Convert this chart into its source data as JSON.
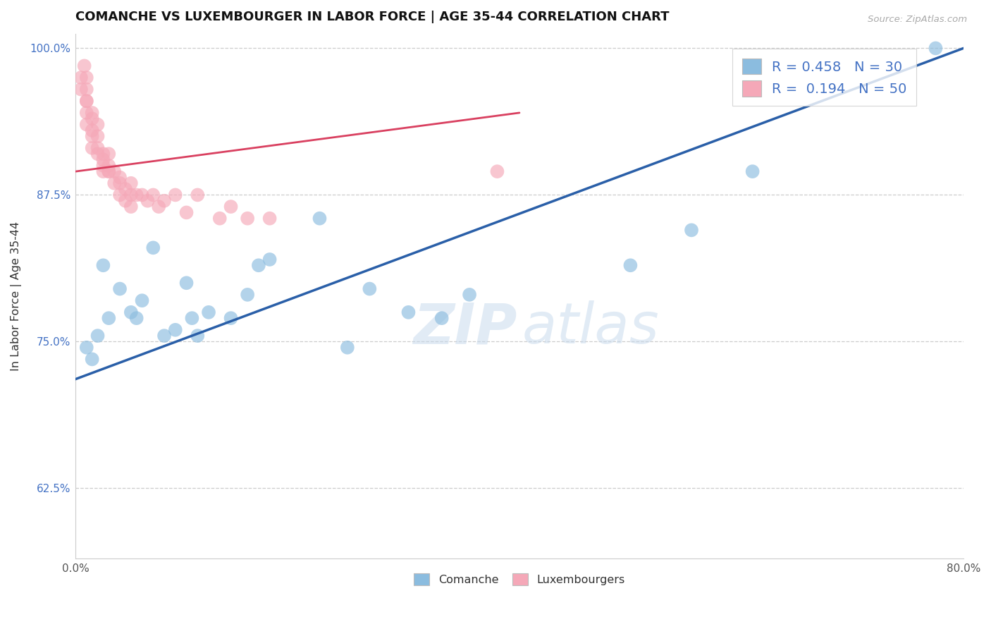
{
  "title": "COMANCHE VS LUXEMBOURGER IN LABOR FORCE | AGE 35-44 CORRELATION CHART",
  "source_text": "Source: ZipAtlas.com",
  "ylabel": "In Labor Force | Age 35-44",
  "xlim": [
    0.0,
    0.8
  ],
  "ylim": [
    0.565,
    1.012
  ],
  "xticks": [
    0.0,
    0.2,
    0.4,
    0.6,
    0.8
  ],
  "xticklabels": [
    "0.0%",
    "",
    "",
    "",
    "80.0%"
  ],
  "yticks": [
    0.625,
    0.75,
    0.875,
    1.0
  ],
  "yticklabels": [
    "62.5%",
    "75.0%",
    "87.5%",
    "100.0%"
  ],
  "blue_R": 0.458,
  "blue_N": 30,
  "pink_R": 0.194,
  "pink_N": 50,
  "blue_color": "#8bbcdf",
  "pink_color": "#f5a8b8",
  "blue_line_color": "#2a5fa8",
  "pink_line_color": "#d94060",
  "legend_blue_label": "Comanche",
  "legend_pink_label": "Luxembourgers",
  "blue_scatter_x": [
    0.01,
    0.015,
    0.02,
    0.025,
    0.03,
    0.04,
    0.05,
    0.055,
    0.06,
    0.07,
    0.08,
    0.09,
    0.1,
    0.105,
    0.11,
    0.12,
    0.14,
    0.155,
    0.165,
    0.175,
    0.22,
    0.245,
    0.265,
    0.3,
    0.33,
    0.355,
    0.5,
    0.555,
    0.61,
    0.775
  ],
  "blue_scatter_y": [
    0.745,
    0.735,
    0.755,
    0.815,
    0.77,
    0.795,
    0.775,
    0.77,
    0.785,
    0.83,
    0.755,
    0.76,
    0.8,
    0.77,
    0.755,
    0.775,
    0.77,
    0.79,
    0.815,
    0.82,
    0.855,
    0.745,
    0.795,
    0.775,
    0.77,
    0.79,
    0.815,
    0.845,
    0.895,
    1.0
  ],
  "pink_scatter_x": [
    0.005,
    0.005,
    0.008,
    0.01,
    0.01,
    0.01,
    0.01,
    0.01,
    0.01,
    0.015,
    0.015,
    0.015,
    0.015,
    0.015,
    0.02,
    0.02,
    0.02,
    0.02,
    0.025,
    0.025,
    0.025,
    0.025,
    0.03,
    0.03,
    0.03,
    0.03,
    0.035,
    0.035,
    0.04,
    0.04,
    0.04,
    0.045,
    0.045,
    0.05,
    0.05,
    0.05,
    0.055,
    0.06,
    0.065,
    0.07,
    0.075,
    0.08,
    0.09,
    0.1,
    0.11,
    0.13,
    0.14,
    0.155,
    0.175,
    0.38
  ],
  "pink_scatter_y": [
    0.965,
    0.975,
    0.985,
    0.935,
    0.945,
    0.955,
    0.965,
    0.975,
    0.955,
    0.93,
    0.94,
    0.945,
    0.925,
    0.915,
    0.91,
    0.915,
    0.925,
    0.935,
    0.9,
    0.91,
    0.895,
    0.905,
    0.895,
    0.9,
    0.91,
    0.895,
    0.885,
    0.895,
    0.885,
    0.89,
    0.875,
    0.88,
    0.87,
    0.875,
    0.885,
    0.865,
    0.875,
    0.875,
    0.87,
    0.875,
    0.865,
    0.87,
    0.875,
    0.86,
    0.875,
    0.855,
    0.865,
    0.855,
    0.855,
    0.895
  ],
  "blue_line_x0": 0.0,
  "blue_line_x1": 0.8,
  "blue_line_y0": 0.718,
  "blue_line_y1": 1.0,
  "pink_line_x0": 0.0,
  "pink_line_x1": 0.4,
  "pink_line_y0": 0.895,
  "pink_line_y1": 0.945
}
